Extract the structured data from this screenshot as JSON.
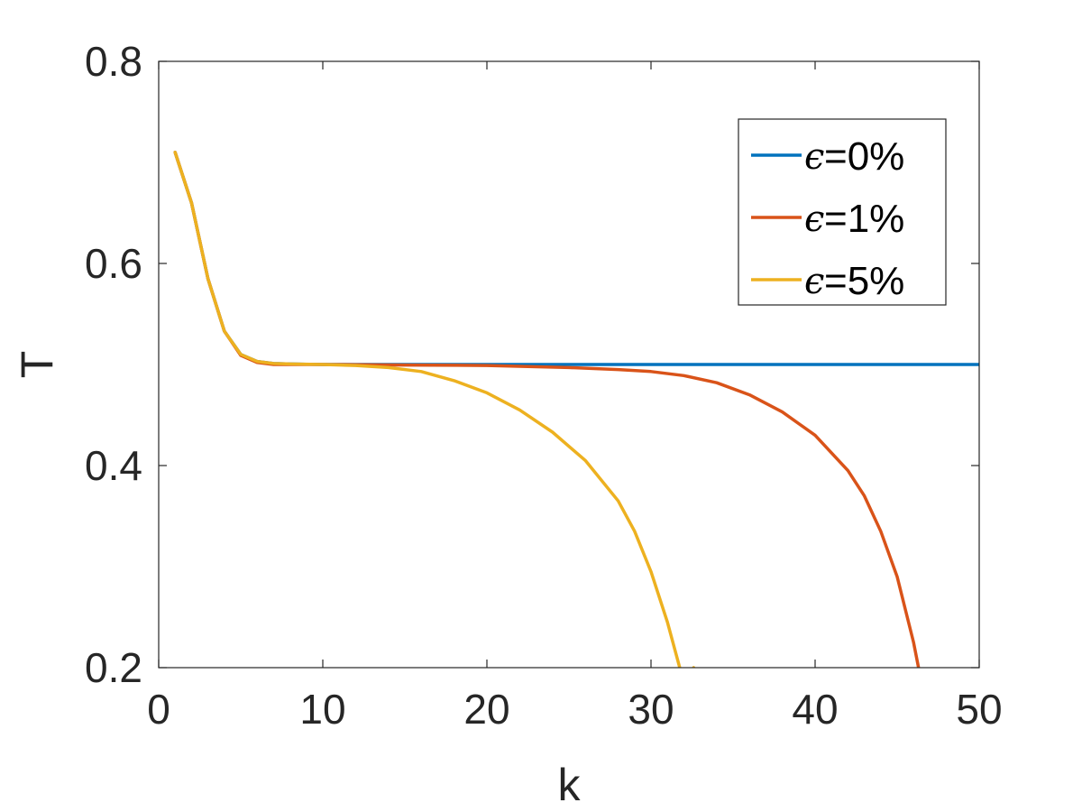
{
  "chart_data": {
    "type": "line",
    "xlabel": "k",
    "ylabel": "T",
    "xlim": [
      0,
      50
    ],
    "ylim": [
      0.2,
      0.8
    ],
    "xticks": [
      "0",
      "10",
      "20",
      "30",
      "40",
      "50"
    ],
    "yticks": [
      "0.2",
      "0.4",
      "0.6",
      "0.8"
    ],
    "grid": false,
    "legend_position": "top-right",
    "series": [
      {
        "name": "=0%",
        "symbol": "ϵ",
        "color": "#0072BD",
        "x": [
          1,
          2,
          3,
          4,
          5,
          6,
          7,
          8,
          9,
          10,
          12,
          14,
          16,
          18,
          20,
          25,
          30,
          35,
          40,
          45,
          50
        ],
        "y": [
          0.71,
          0.66,
          0.585,
          0.533,
          0.51,
          0.503,
          0.501,
          0.5005,
          0.5002,
          0.5,
          0.5,
          0.5,
          0.5,
          0.5,
          0.5,
          0.5,
          0.5,
          0.5,
          0.5,
          0.5,
          0.5
        ]
      },
      {
        "name": "=1%",
        "symbol": "ϵ",
        "color": "#D95319",
        "x": [
          1,
          2,
          3,
          4,
          5,
          6,
          7,
          8,
          10,
          12,
          15,
          20,
          25,
          28,
          30,
          32,
          34,
          36,
          38,
          40,
          42,
          43,
          44,
          45,
          46,
          46.3
        ],
        "y": [
          0.71,
          0.66,
          0.585,
          0.533,
          0.509,
          0.502,
          0.5,
          0.5,
          0.5,
          0.4998,
          0.4995,
          0.499,
          0.497,
          0.495,
          0.493,
          0.489,
          0.482,
          0.47,
          0.453,
          0.43,
          0.395,
          0.37,
          0.335,
          0.29,
          0.225,
          0.2
        ]
      },
      {
        "name": " =5%",
        "symbol": "ϵ",
        "color": "#EDB120",
        "x": [
          1,
          2,
          3,
          4,
          5,
          6,
          7,
          8,
          10,
          12,
          14,
          16,
          18,
          20,
          22,
          24,
          26,
          28,
          29,
          30,
          31,
          32,
          32.6
        ],
        "y": [
          0.71,
          0.66,
          0.585,
          0.533,
          0.51,
          0.503,
          0.501,
          0.5005,
          0.5,
          0.499,
          0.497,
          0.493,
          0.484,
          0.472,
          0.455,
          0.433,
          0.405,
          0.365,
          0.335,
          0.295,
          0.245,
          0.185,
          0.2
        ]
      }
    ]
  }
}
